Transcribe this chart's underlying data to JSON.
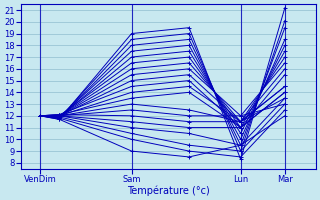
{
  "bg_color": "#c8e8f0",
  "grid_color": "#90bdd0",
  "line_color": "#0000bb",
  "ylim": [
    7.5,
    21.5
  ],
  "yticks": [
    8,
    9,
    10,
    11,
    12,
    13,
    14,
    15,
    16,
    17,
    18,
    19,
    20,
    21
  ],
  "xlabel": "Température (°c)",
  "xtick_labels": [
    "VenDim",
    "Sam",
    "Lun",
    "Mar"
  ],
  "xtick_positions": [
    0.065,
    0.375,
    0.745,
    0.895
  ],
  "day_lines": [
    0.065,
    0.375,
    0.745,
    0.895
  ],
  "xlim": [
    0.0,
    1.0
  ],
  "series": [
    {
      "x": [
        0.065,
        0.13,
        0.375,
        0.57,
        0.745,
        0.895
      ],
      "y": [
        12.0,
        11.7,
        19.0,
        19.5,
        8.3,
        21.2
      ]
    },
    {
      "x": [
        0.065,
        0.13,
        0.375,
        0.57,
        0.745,
        0.895
      ],
      "y": [
        12.0,
        11.8,
        18.5,
        19.0,
        9.0,
        20.1
      ]
    },
    {
      "x": [
        0.065,
        0.13,
        0.375,
        0.57,
        0.745,
        0.895
      ],
      "y": [
        12.0,
        11.8,
        18.0,
        18.5,
        9.5,
        19.5
      ]
    },
    {
      "x": [
        0.065,
        0.13,
        0.375,
        0.57,
        0.745,
        0.895
      ],
      "y": [
        12.0,
        11.9,
        17.5,
        18.0,
        10.0,
        18.5
      ]
    },
    {
      "x": [
        0.065,
        0.13,
        0.375,
        0.57,
        0.745,
        0.895
      ],
      "y": [
        12.0,
        11.9,
        17.0,
        17.5,
        10.5,
        18.0
      ]
    },
    {
      "x": [
        0.065,
        0.13,
        0.375,
        0.57,
        0.745,
        0.895
      ],
      "y": [
        12.0,
        12.0,
        16.5,
        17.0,
        11.0,
        17.5
      ]
    },
    {
      "x": [
        0.065,
        0.13,
        0.375,
        0.57,
        0.745,
        0.895
      ],
      "y": [
        12.0,
        12.0,
        16.0,
        16.5,
        11.5,
        17.0
      ]
    },
    {
      "x": [
        0.065,
        0.13,
        0.375,
        0.57,
        0.745,
        0.895
      ],
      "y": [
        12.0,
        12.0,
        15.5,
        16.0,
        12.0,
        16.5
      ]
    },
    {
      "x": [
        0.065,
        0.13,
        0.375,
        0.57,
        0.745,
        0.895
      ],
      "y": [
        12.0,
        12.0,
        15.0,
        15.5,
        11.5,
        16.0
      ]
    },
    {
      "x": [
        0.065,
        0.13,
        0.375,
        0.57,
        0.745,
        0.895
      ],
      "y": [
        12.0,
        12.1,
        14.5,
        15.0,
        11.0,
        15.5
      ]
    },
    {
      "x": [
        0.065,
        0.13,
        0.375,
        0.57,
        0.745,
        0.895
      ],
      "y": [
        12.0,
        12.0,
        14.0,
        14.5,
        11.5,
        14.5
      ]
    },
    {
      "x": [
        0.065,
        0.13,
        0.375,
        0.57,
        0.745,
        0.895
      ],
      "y": [
        12.0,
        12.1,
        13.5,
        14.0,
        11.0,
        14.0
      ]
    },
    {
      "x": [
        0.065,
        0.13,
        0.375,
        0.57,
        0.745,
        0.895
      ],
      "y": [
        12.0,
        12.0,
        13.0,
        12.5,
        11.5,
        13.5
      ]
    },
    {
      "x": [
        0.065,
        0.13,
        0.375,
        0.57,
        0.745,
        0.895
      ],
      "y": [
        12.0,
        12.0,
        12.5,
        12.0,
        12.0,
        13.0
      ]
    },
    {
      "x": [
        0.065,
        0.13,
        0.375,
        0.57,
        0.745,
        0.895
      ],
      "y": [
        12.0,
        12.1,
        12.0,
        11.5,
        11.5,
        14.5
      ]
    },
    {
      "x": [
        0.065,
        0.13,
        0.375,
        0.57,
        0.745,
        0.895
      ],
      "y": [
        12.0,
        12.0,
        11.5,
        11.0,
        11.0,
        14.0
      ]
    },
    {
      "x": [
        0.065,
        0.13,
        0.375,
        0.57,
        0.745,
        0.895
      ],
      "y": [
        12.0,
        12.0,
        11.0,
        10.5,
        9.5,
        13.5
      ]
    },
    {
      "x": [
        0.065,
        0.13,
        0.375,
        0.57,
        0.745,
        0.895
      ],
      "y": [
        12.0,
        11.9,
        10.5,
        9.5,
        9.0,
        13.0
      ]
    },
    {
      "x": [
        0.065,
        0.13,
        0.375,
        0.57,
        0.745,
        0.895
      ],
      "y": [
        12.0,
        11.8,
        10.0,
        9.0,
        8.5,
        12.5
      ]
    },
    {
      "x": [
        0.065,
        0.13,
        0.375,
        0.57,
        0.745,
        0.895
      ],
      "y": [
        12.0,
        11.7,
        9.0,
        8.5,
        9.5,
        12.0
      ]
    }
  ]
}
